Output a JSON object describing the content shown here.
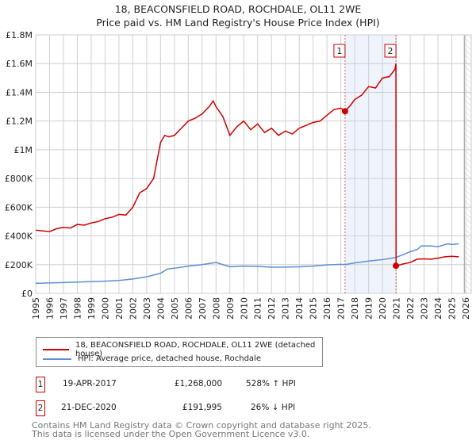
{
  "title": "18, BEACONSFIELD ROAD, ROCHDALE, OL11 2WE",
  "subtitle": "Price paid vs. HM Land Registry's House Price Index (HPI)",
  "chart_data": {
    "type": "line",
    "xlim": [
      1995,
      2026
    ],
    "ylim": [
      0,
      1800000
    ],
    "yticks": [
      {
        "v": 0,
        "l": "£0"
      },
      {
        "v": 200000,
        "l": "£200K"
      },
      {
        "v": 400000,
        "l": "£400K"
      },
      {
        "v": 600000,
        "l": "£600K"
      },
      {
        "v": 800000,
        "l": "£800K"
      },
      {
        "v": 1000000,
        "l": "£1M"
      },
      {
        "v": 1200000,
        "l": "£1.2M"
      },
      {
        "v": 1400000,
        "l": "£1.4M"
      },
      {
        "v": 1600000,
        "l": "£1.6M"
      },
      {
        "v": 1800000,
        "l": "£1.8M"
      }
    ],
    "xticks": [
      "1995",
      "1996",
      "1997",
      "1998",
      "1999",
      "2000",
      "2001",
      "2002",
      "2003",
      "2004",
      "2005",
      "2006",
      "2007",
      "2008",
      "2009",
      "2010",
      "2011",
      "2012",
      "2013",
      "2014",
      "2015",
      "2016",
      "2017",
      "2018",
      "2019",
      "2020",
      "2021",
      "2022",
      "2023",
      "2024",
      "2025",
      "2026"
    ],
    "grid": true,
    "shaded_span": [
      2017.3,
      2020.97
    ],
    "data_end": 2025.9,
    "series": [
      {
        "name": "18, BEACONSFIELD ROAD, ROCHDALE, OL11 2WE (detached house)",
        "color": "#cc0000",
        "x": [
          1995,
          1995.5,
          1996,
          1996.5,
          1997,
          1997.5,
          1998,
          1998.5,
          1999,
          1999.5,
          2000,
          2000.5,
          2001,
          2001.5,
          2002,
          2002.5,
          2003,
          2003.5,
          2004,
          2004.3,
          2004.6,
          2005,
          2005.5,
          2006,
          2006.5,
          2007,
          2007.5,
          2007.8,
          2008,
          2008.5,
          2009,
          2009.5,
          2010,
          2010.5,
          2011,
          2011.5,
          2012,
          2012.5,
          2013,
          2013.5,
          2014,
          2014.5,
          2015,
          2015.5,
          2016,
          2016.5,
          2017,
          2017.3,
          2017.7,
          2018,
          2018.5,
          2019,
          2019.5,
          2020,
          2020.5,
          2020.9,
          2020.97,
          2020.98,
          2021.5,
          2022,
          2022.5,
          2023,
          2023.5,
          2024,
          2024.5,
          2025,
          2025.5
        ],
        "y": [
          440000,
          435000,
          430000,
          450000,
          460000,
          455000,
          480000,
          475000,
          490000,
          500000,
          520000,
          530000,
          550000,
          545000,
          600000,
          700000,
          730000,
          800000,
          1050000,
          1100000,
          1090000,
          1100000,
          1150000,
          1200000,
          1220000,
          1250000,
          1300000,
          1340000,
          1300000,
          1230000,
          1100000,
          1160000,
          1200000,
          1140000,
          1180000,
          1120000,
          1150000,
          1100000,
          1130000,
          1110000,
          1150000,
          1170000,
          1190000,
          1200000,
          1240000,
          1280000,
          1290000,
          1268000,
          1310000,
          1350000,
          1380000,
          1440000,
          1430000,
          1500000,
          1510000,
          1560000,
          1600000,
          191995,
          205000,
          215000,
          238000,
          240000,
          238000,
          245000,
          255000,
          258000,
          255000
        ]
      },
      {
        "name": "HPI: Average price, detached house, Rochdale",
        "color": "#5b8fd4",
        "x": [
          1995,
          1997,
          2000,
          2001,
          2002,
          2003,
          2004,
          2004.5,
          2005,
          2006,
          2007,
          2008,
          2008.5,
          2009,
          2010,
          2011,
          2012,
          2013,
          2014,
          2015,
          2016,
          2017,
          2017.3,
          2018,
          2019,
          2020,
          2020.97,
          2021.5,
          2022,
          2022.5,
          2022.8,
          2023.5,
          2024,
          2024.7,
          2025,
          2025.5
        ],
        "y": [
          70000,
          75000,
          85000,
          90000,
          100000,
          115000,
          140000,
          170000,
          175000,
          190000,
          200000,
          215000,
          200000,
          185000,
          190000,
          188000,
          182000,
          183000,
          185000,
          190000,
          198000,
          202000,
          200000,
          212000,
          225000,
          235000,
          250000,
          270000,
          290000,
          305000,
          330000,
          330000,
          325000,
          345000,
          340000,
          345000
        ]
      }
    ],
    "annotations": [
      {
        "label": "1",
        "x": 2017.3,
        "y": 1268000
      },
      {
        "label": "2",
        "x": 2020.97,
        "y": 191995
      }
    ]
  },
  "legend": [
    "18, BEACONSFIELD ROAD, ROCHDALE, OL11 2WE (detached house)",
    "HPI: Average price, detached house, Rochdale"
  ],
  "transactions": [
    {
      "num": "1",
      "date": "19-APR-2017",
      "price": "£1,268,000",
      "hpi": "528% ↑ HPI"
    },
    {
      "num": "2",
      "date": "21-DEC-2020",
      "price": "£191,995",
      "hpi": "26% ↓ HPI"
    }
  ],
  "footer": [
    "Contains HM Land Registry data © Crown copyright and database right 2025.",
    "This data is licensed under the Open Government Licence v3.0."
  ]
}
